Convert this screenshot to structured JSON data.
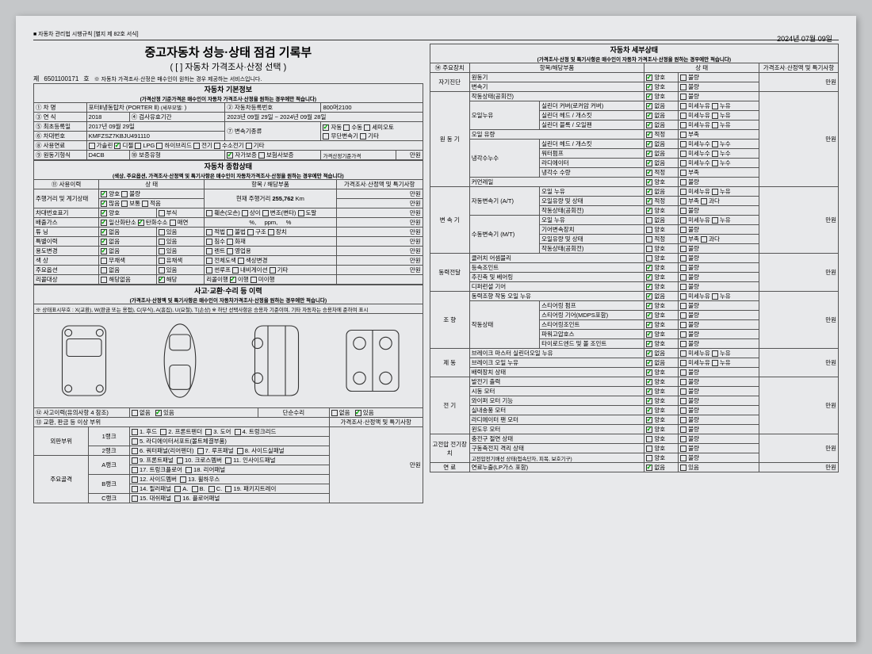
{
  "header": {
    "form_code": "■ 자동차 관리법 시행규칙 [별지 제 82호 서식]",
    "date": "2024년 07월 09일",
    "title": "중고자동차 성능·상태 점검 기록부",
    "subtitle": "( [ ] 자동차 가격조사·산정 선택 )",
    "doc_no_label": "제",
    "doc_no": "6501100171",
    "doc_no_suffix": "호",
    "doc_note": "※ 자동차 가격조사·산정은 매수인이 원하는 경우 제공하는 서비스입니다."
  },
  "basic": {
    "title": "자동차 기본정보",
    "note": "(가격산정 기준가격은 매수인이 자동차 가격조사·산정을 원하는 경우에만 적습니다)",
    "row1_l1": "① 차    명",
    "row1_v1": "포터Ⅱ냉동탑차 (PORTER Ⅱ)",
    "row1_l2": "(세부모델:",
    "row1_l3": "② 자동차등록번호",
    "row1_v3": "800머2100",
    "row2_l1": "③ 연    식",
    "row2_v1": "2018",
    "row2_l2": "④ 검사유효기간",
    "row2_v2": "2023년 09월 29일 ~ 2024년 09월 28일",
    "row3_l1": "⑤ 최초등록일",
    "row3_v1": "2017년 09월 29일",
    "row3_l2": "⑦ 변속기종류",
    "trans_auto": "자동",
    "trans_manual": "수동",
    "trans_semi": "세미오토",
    "trans_cvt": "무단변속기",
    "trans_etc": "기타",
    "row4_l1": "⑥ 차대번호",
    "row4_v1": "KMFZSZ7KBJU491110",
    "row5_l1": "⑧ 사용연료",
    "fuel_gas": "가솔린",
    "fuel_diesel": "디젤",
    "fuel_lpg": "LPG",
    "fuel_hybrid": "하이브리드",
    "fuel_elec": "전기",
    "fuel_hydro": "수소전기",
    "fuel_etc": "기타",
    "row6_l1": "⑨ 원동기형식",
    "row6_v1": "D4CB",
    "row6_l2": "⑩ 보증유형",
    "warranty_self": "자가보증",
    "warranty_ins": "보험사보증",
    "row6_l3": "가격산정기준가격",
    "won": "만원"
  },
  "general": {
    "title": "자동차 종합상태",
    "note": "(색상, 주요옵션, 가격조사·산정액 및 특기사항은 매수인이 자동차가격조사·산정을 원하는 경우에만 적습니다)",
    "col_use": "⑪ 사용이력",
    "col_status": "상    태",
    "col_item": "항목 / 해당부품",
    "col_price": "가격조사·산정액 및 특기사항",
    "odo_label": "주행거리 및\n계기상태",
    "odo_good": "양호",
    "odo_bad": "불량",
    "odo_many": "많음",
    "odo_normal": "보통",
    "odo_few": "적음",
    "odo_text": "현재 주행거리",
    "odo_value": "255,762",
    "odo_unit": "Km",
    "plate_label": "차대번호표기",
    "plate_good": "양호",
    "plate_corr": "부식",
    "plate_damage": "훼손(오손)",
    "plate_diff": "상이",
    "plate_change": "변조(변타)",
    "plate_paint": "도말",
    "emission_label": "배출가스",
    "em_co": "일산화탄소",
    "em_hc": "탄화수소",
    "em_smoke": "매연",
    "em_unit1": "%,",
    "em_unit2": "ppm,",
    "em_unit3": "%",
    "tuning_label": "튜    닝",
    "tune_none": "없음",
    "tune_yes": "있음",
    "tune_legal": "적법",
    "tune_illegal": "불법",
    "tune_struct": "구조",
    "tune_device": "장치",
    "special_label": "특별이력",
    "sp_none": "없음",
    "sp_yes": "있음",
    "sp_flood": "침수",
    "sp_fire": "화재",
    "usage_label": "용도변경",
    "use_none": "없음",
    "use_yes": "있음",
    "use_rent": "렌트",
    "use_biz": "영업용",
    "color_label": "색    상",
    "color_plain": "무채색",
    "color_chrom": "유채색",
    "color_full": "전체도색",
    "color_change": "색상변경",
    "option_label": "주요옵션",
    "opt_none": "없음",
    "opt_yes": "있음",
    "opt_sunroof": "썬루프",
    "opt_nav": "내비게이션",
    "opt_etc": "기타",
    "recall_label": "리콜대상",
    "recall_none": "해당없음",
    "recall_yes": "해당",
    "recall_fix": "리콜이행",
    "recall_done": "이행",
    "recall_not": "미이행",
    "won": "만원"
  },
  "accident": {
    "title": "사고·교환·수리 등 이력",
    "note": "(가격조사·산정액 및 특기사항은 매수인이 자동차가격조사·산정을 원하는 경우에만 적습니다)",
    "legend": "※ 상태표시부호 :  X(교환), W(판금 또는 용접), C(부식), A(흠집), U(요철), T(손상)    ※ 하단 선택사항은 승용차 기준이며, 기타 자동차는 승용차에 준하여 표시",
    "acc_label": "⑫ 사고이력(유의사항 4 참조)",
    "acc_none": "없음",
    "acc_yes": "있음",
    "simple_label": "단순수리",
    "simple_none": "없음",
    "simple_yes": "있음",
    "exch_label": "⑬ 교환, 판금 등 이상 부위",
    "col_price": "가격조사·산정액 및 특기사항",
    "outer_label": "외판부위",
    "rank1": "1랭크",
    "rank1_items": [
      "1. 후드",
      "2. 프론트펜더",
      "3. 도어",
      "4. 트렁크리드"
    ],
    "rank1b": "",
    "rank1b_items": [
      "5. 라디에이터서포트(볼트체결부품)"
    ],
    "rank2": "2랭크",
    "rank2_items": [
      "6. 쿼터패널(리어펜더)",
      "7. 루프패널",
      "8. 사이드실패널"
    ],
    "main_label": "주요골격",
    "rankA": "A랭크",
    "rankA_items": [
      "9. 프론트패널",
      "10. 크로스멤버",
      "11. 인사이드패널"
    ],
    "rankA2": "",
    "rankA2_items": [
      "17. 트렁크플로어",
      "18. 리어패널"
    ],
    "rankB": "B랭크",
    "rankB_items": [
      "12. 사이드멤버",
      "13. 휠하우스"
    ],
    "rankB2": "",
    "rankB2_items": [
      "14. 필러패널",
      "A.",
      "B.",
      "C.",
      "19. 패키지트레이"
    ],
    "rankC": "C랭크",
    "rankC_items": [
      "15. 대쉬패널",
      "16. 플로어패널"
    ],
    "won": "만원"
  },
  "detail": {
    "title": "자동차 세부상태",
    "note": "(가격조사·산정 및 특기사항은 매수인이 자동차 가격조사·산정을 원하는 경우에만 적습니다)",
    "col_device": "⑭ 주요장치",
    "col_item": "항목/해당부품",
    "col_status": "상    태",
    "col_price": "가격조사·산정액 및 특기사항",
    "g_self": "자기진단",
    "self_engine": "원동기",
    "self_trans": "변속기",
    "g_engine": "원 동 기",
    "eng_op": "작동상태(공회전)",
    "eng_oil": "오일누유",
    "eng_oil1": "실린더 커버(로커암 커버)",
    "eng_oil2": "실린더 헤드 / 개스킷",
    "eng_oil3": "실린더 블록 / 오일팬",
    "eng_oilamt": "오일 유량",
    "eng_cool": "냉각수누수",
    "eng_cool1": "실린더 헤드 / 개스킷",
    "eng_cool2": "워터펌프",
    "eng_cool3": "라디에이터",
    "eng_cool4": "냉각수 수량",
    "eng_belt": "커먼레일",
    "g_trans": "변 속 기",
    "trans_at": "자동변속기\n(A/T)",
    "at1": "오일 누유",
    "at2": "오일유량 및 상태",
    "at3": "작동상태(공회전)",
    "trans_mt": "수동변속기\n(M/T)",
    "mt1": "오일 누유",
    "mt2": "기어변속장치",
    "mt3": "오일유량 및 상태",
    "mt4": "작동상태(공회전)",
    "g_power": "동력전달",
    "pw1": "클러치 어셈블리",
    "pw2": "등속조인트",
    "pw3": "추진축 및 베어링",
    "pw4": "디퍼런셜 기어",
    "g_steer": "조    향",
    "st_oil": "동력조향 작동 오일 누유",
    "st_op": "작동상태",
    "st1": "스티어링 펌프",
    "st2": "스티어링 기어(MDPS포함)",
    "st3": "스티어링조인트",
    "st4": "파워고압호스",
    "st5": "타이로드엔드 및 볼 조인트",
    "g_brake": "제    동",
    "br1": "브레이크 마스터 실린더오일 누유",
    "br2": "브레이크 오일 누유",
    "br3": "배력장치 상태",
    "g_elec": "전    기",
    "el1": "발전기 출력",
    "el2": "시동 모터",
    "el3": "와이퍼 모터 기능",
    "el4": "실내송풍 모터",
    "el5": "라디에이터 팬 모터",
    "el6": "윈도우 모터",
    "g_hv": "고전압\n전기장치",
    "hv1": "충전구 절연 상태",
    "hv2": "구동축전지 격리 상태",
    "hv3": "고전압전기배선 상태(접속단자, 피복, 보호기구)",
    "g_fuel": "연    료",
    "fuel1": "연료누출(LP가스 포함)",
    "st_good": "양호",
    "st_bad": "불량",
    "st_none": "없음",
    "st_micro": "미세누유",
    "st_leak": "누유",
    "st_ok": "적정",
    "st_low": "부족",
    "st_over": "과다",
    "st_noneleak": "없음",
    "st_microleak": "미세누수",
    "st_leakw": "누수",
    "st_yes": "있음",
    "won": "만원"
  }
}
